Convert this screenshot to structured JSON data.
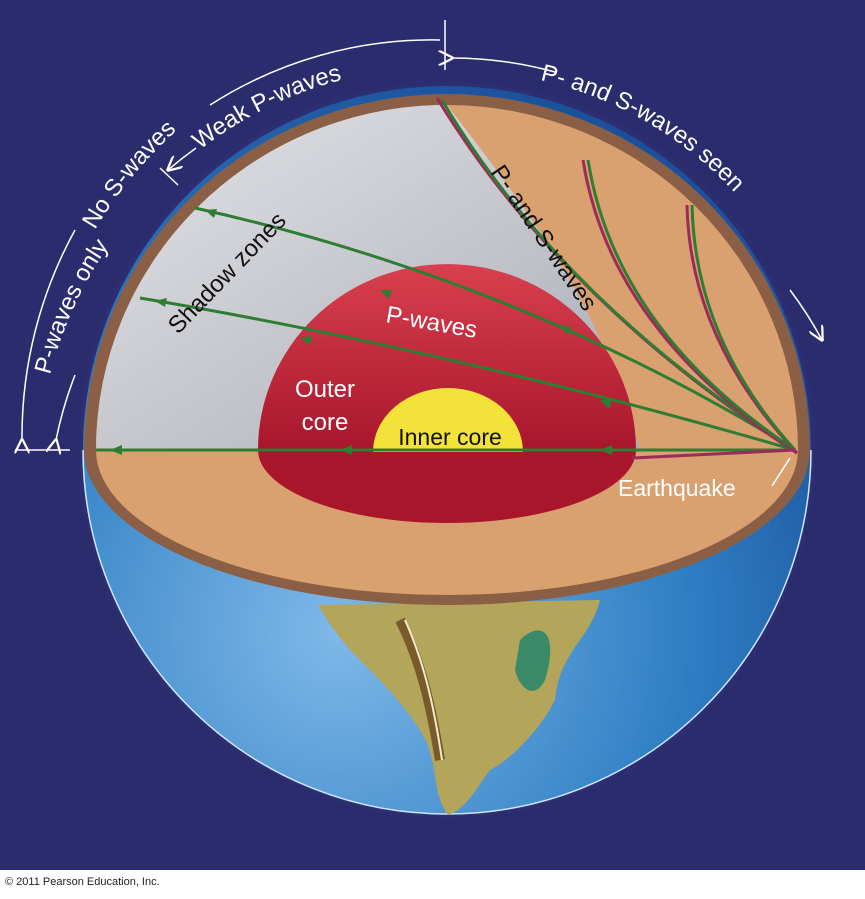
{
  "diagram": {
    "labels": {
      "weak_p_waves": "Weak P-waves",
      "p_and_s_waves_seen": "P- and S-waves seen",
      "no_s_waves": "No S-waves",
      "p_waves_only": "P-waves only",
      "shadow_zones": "Shadow zones",
      "p_and_s_waves": "P- and S-waves",
      "p_waves": "P-waves",
      "outer_core_line1": "Outer",
      "outer_core_line2": "core",
      "inner_core": "Inner core",
      "earthquake": "Earthquake"
    },
    "colors": {
      "background": "#2b2c6e",
      "ocean": "#2f7fc4",
      "crust": "#8a5f45",
      "mantle": "#d9a070",
      "shadow_zone": "#c4c6cc",
      "outer_core": "#c8283e",
      "inner_core": "#f2e23a",
      "p_wave": "#2e7d32",
      "s_wave": "#9c2b5a"
    }
  },
  "footer": {
    "copyright": "© 2011 Pearson Education, Inc."
  }
}
